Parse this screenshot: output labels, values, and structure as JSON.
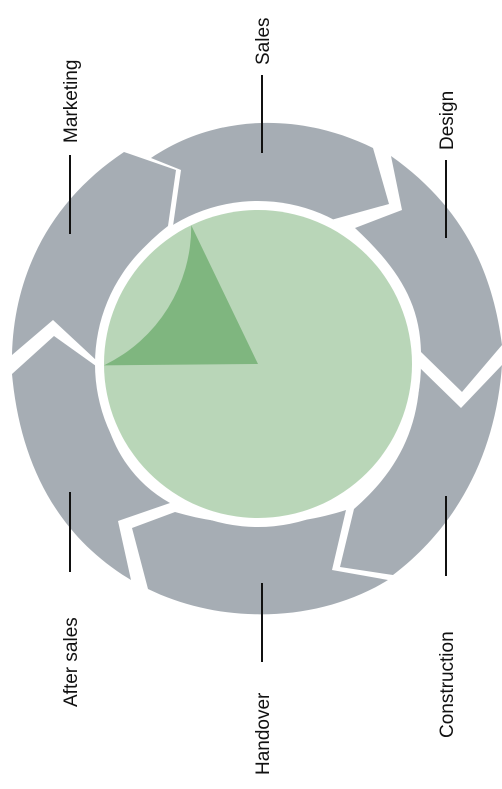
{
  "diagram": {
    "type": "circular-process-cycle",
    "stages": [
      {
        "name": "Sales"
      },
      {
        "name": "Design"
      },
      {
        "name": "Construction"
      },
      {
        "name": "Handover"
      },
      {
        "name": "After sales"
      },
      {
        "name": "Marketing"
      }
    ],
    "highlight_fraction": 0.18,
    "colors": {
      "ring": "#a6adb4",
      "ring_gap": "#ffffff",
      "circle": "#b9d6b8",
      "highlight": "#7fb67f",
      "text": "#111111"
    }
  }
}
